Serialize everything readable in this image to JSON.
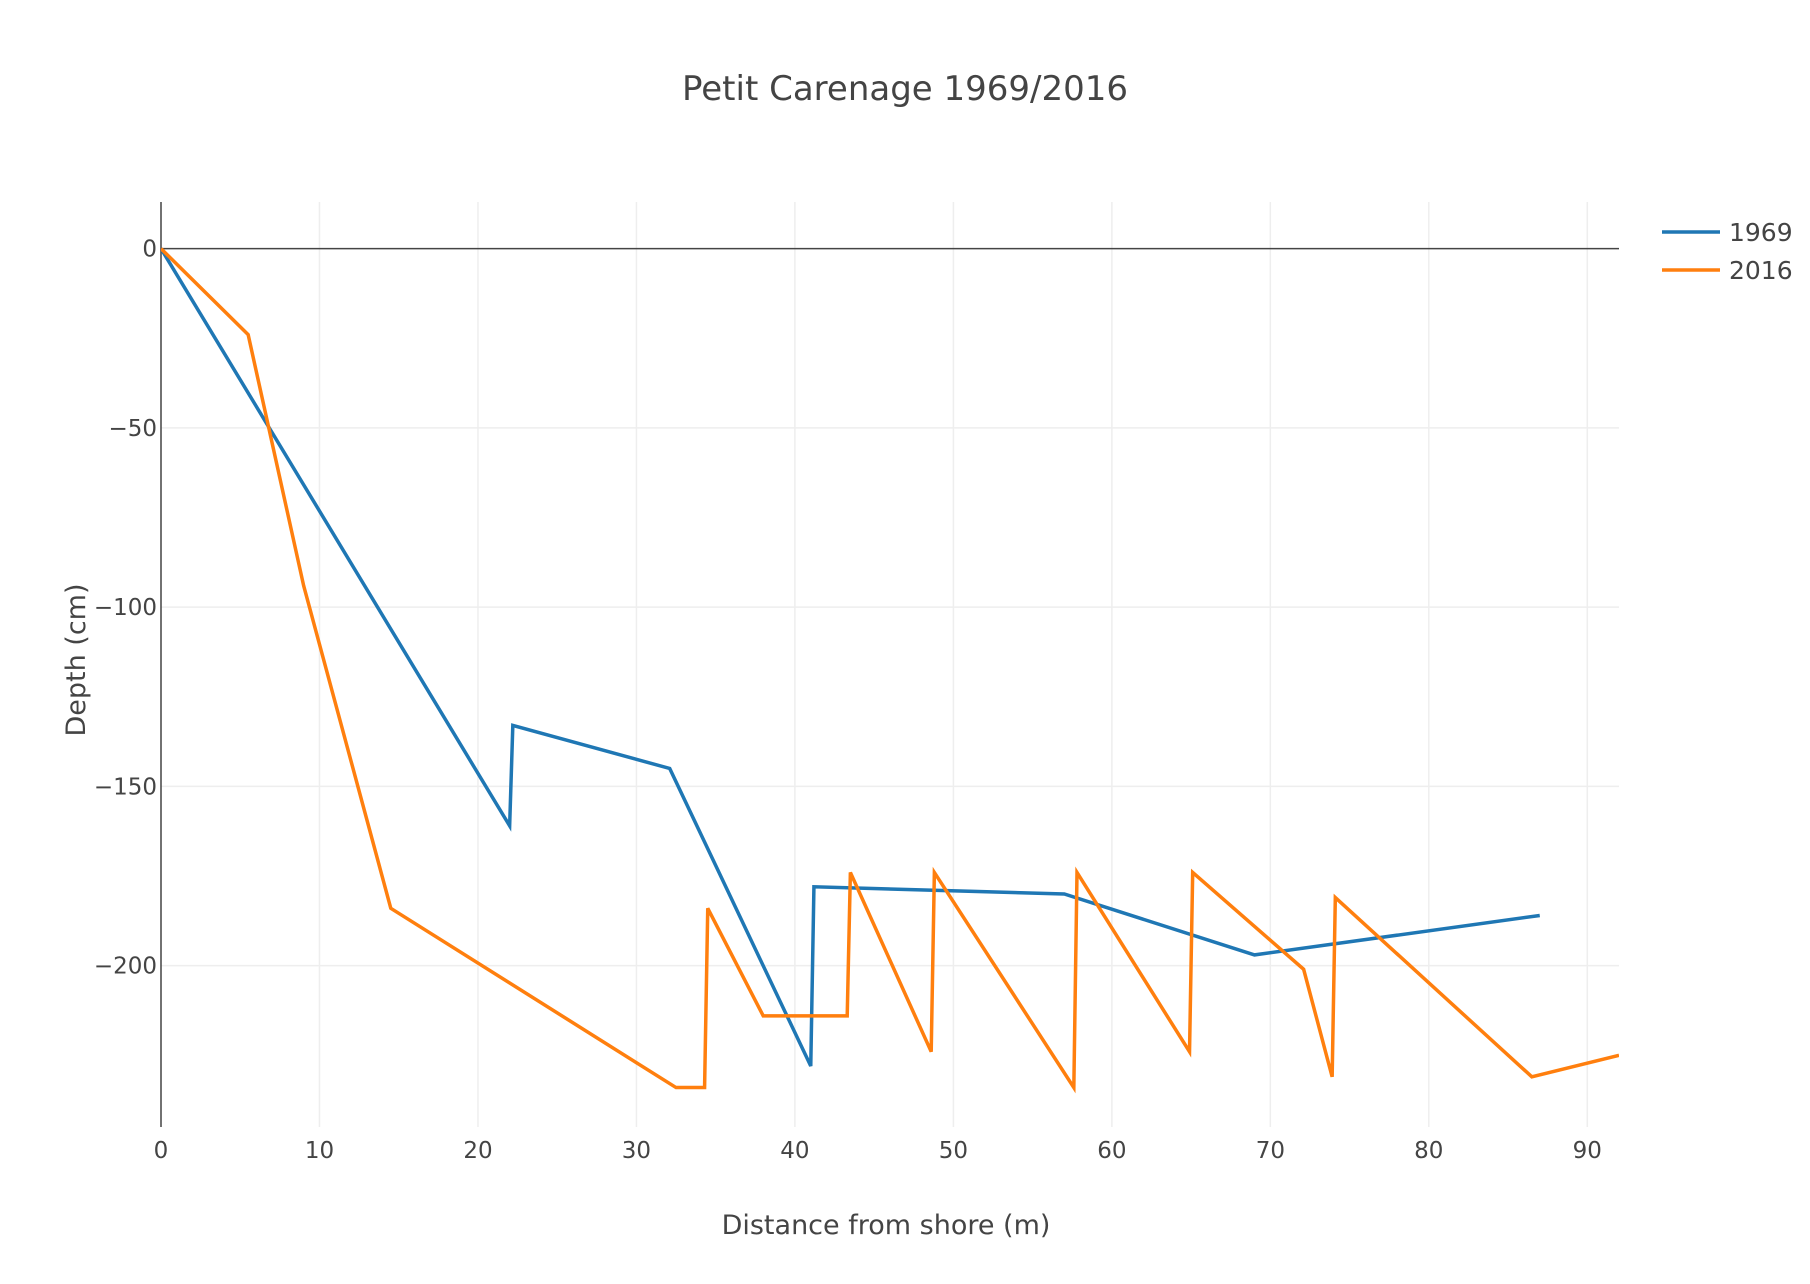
{
  "chart_data": {
    "type": "line",
    "title": "Petit Carenage 1969/2016",
    "xlabel": "Distance from shore (m)",
    "ylabel": "Depth (cm)",
    "xlim": [
      0,
      92
    ],
    "ylim": [
      -245,
      13
    ],
    "x_ticks": [
      0,
      10,
      20,
      30,
      40,
      50,
      60,
      70,
      80,
      90
    ],
    "x_tick_labels": [
      "0",
      "10",
      "20",
      "30",
      "40",
      "50",
      "60",
      "70",
      "80",
      "90"
    ],
    "y_ticks": [
      0,
      -50,
      -100,
      -150,
      -200
    ],
    "y_tick_labels": [
      "0",
      "−50",
      "−100",
      "−150",
      "−200"
    ],
    "grid": true,
    "legend_position": "top-right",
    "series": [
      {
        "name": "1969",
        "color": "#1f77b4",
        "x": [
          0,
          22,
          22.2,
          32.1,
          41,
          41.2,
          57,
          69,
          87
        ],
        "y": [
          0,
          -161,
          -133,
          -145,
          -228,
          -178,
          -180,
          -197,
          -186
        ]
      },
      {
        "name": "2016",
        "color": "#ff7f0e",
        "x": [
          0,
          5.5,
          9,
          14.5,
          32.5,
          34.3,
          34.5,
          38,
          43.3,
          43.5,
          48.6,
          48.8,
          57.6,
          57.8,
          64.9,
          65.1,
          72.1,
          73.9,
          74.1,
          86.5,
          92
        ],
        "y": [
          0,
          -24,
          -94,
          -184,
          -234,
          -234,
          -184,
          -214,
          -214,
          -174,
          -224,
          -174,
          -234,
          -174,
          -224,
          -174,
          -201,
          -231,
          -181,
          -231,
          -225
        ]
      }
    ]
  }
}
